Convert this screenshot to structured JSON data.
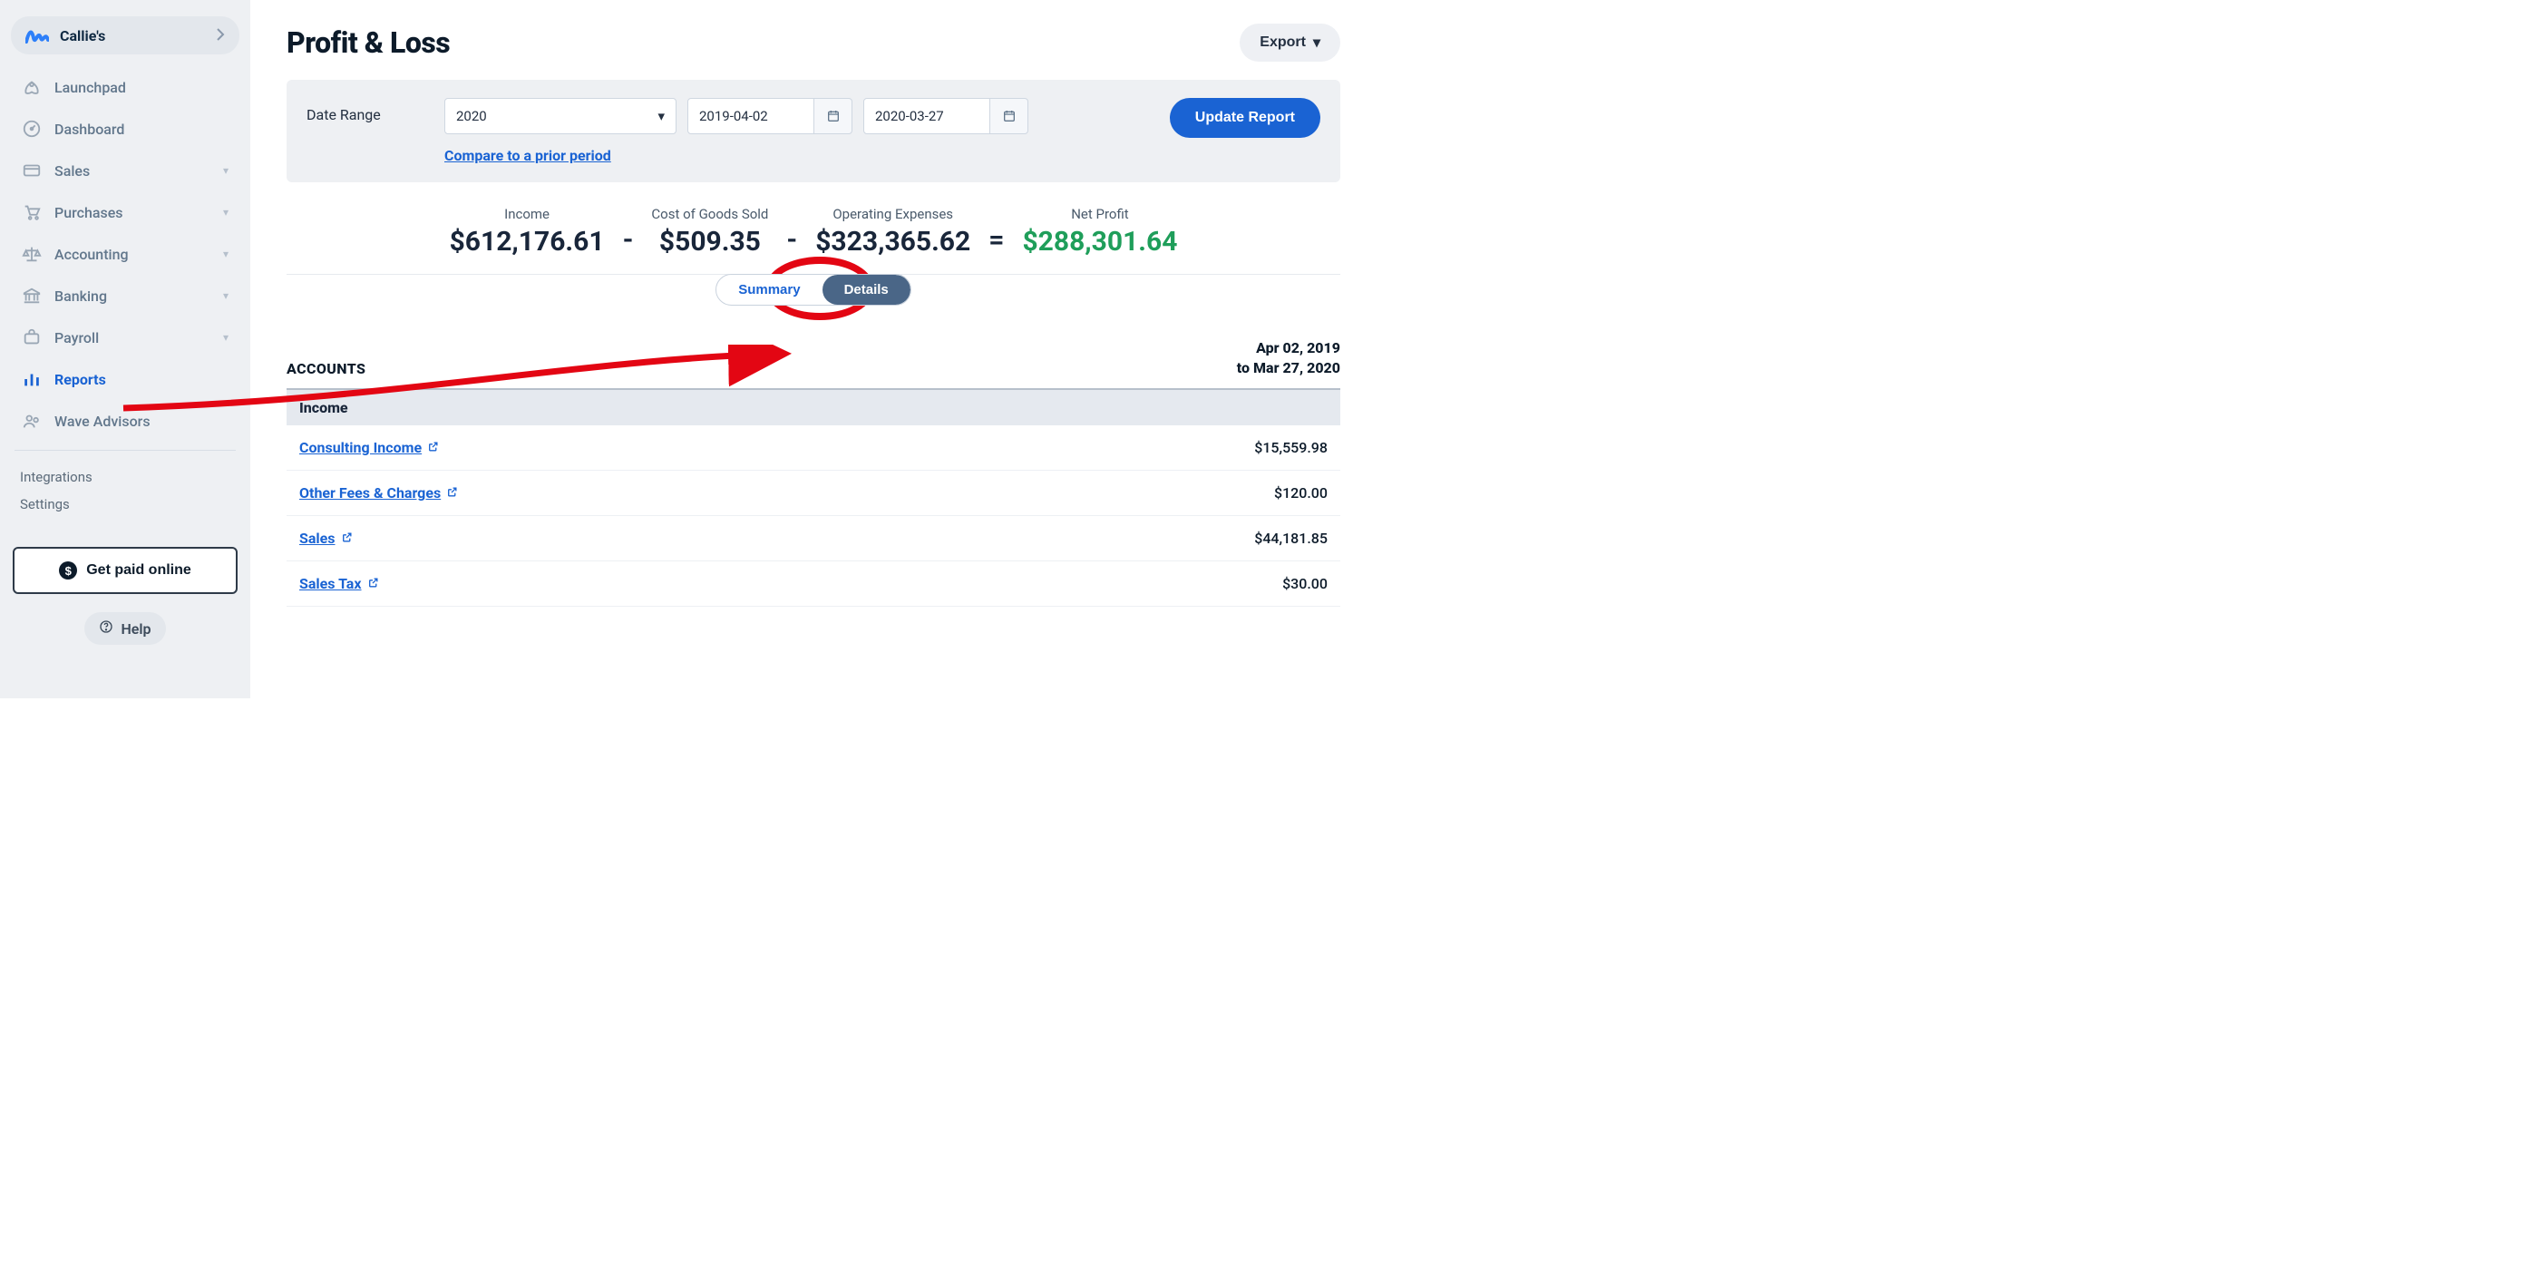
{
  "colors": {
    "sidebar_bg": "#eef0f3",
    "active_blue": "#1a63d3",
    "net_profit_green": "#1f9e5a",
    "toggle_active_bg": "#4a6687",
    "annotation_red": "#e30613"
  },
  "sidebar": {
    "business_name": "Callie's",
    "items": [
      {
        "label": "Launchpad",
        "expandable": false
      },
      {
        "label": "Dashboard",
        "expandable": false
      },
      {
        "label": "Sales",
        "expandable": true
      },
      {
        "label": "Purchases",
        "expandable": true
      },
      {
        "label": "Accounting",
        "expandable": true
      },
      {
        "label": "Banking",
        "expandable": true
      },
      {
        "label": "Payroll",
        "expandable": true
      },
      {
        "label": "Reports",
        "expandable": false,
        "active": true
      },
      {
        "label": "Wave Advisors",
        "expandable": false
      }
    ],
    "secondary": [
      "Integrations",
      "Settings"
    ],
    "cta": "Get paid online",
    "help": "Help"
  },
  "page": {
    "title": "Profit & Loss",
    "export_label": "Export"
  },
  "filters": {
    "label": "Date Range",
    "preset": "2020",
    "start_date": "2019-04-02",
    "end_date": "2020-03-27",
    "compare_link": "Compare to a prior period",
    "update_label": "Update Report"
  },
  "equation": {
    "income_label": "Income",
    "income_value": "$612,176.61",
    "cogs_label": "Cost of Goods Sold",
    "cogs_value": "$509.35",
    "opex_label": "Operating Expenses",
    "opex_value": "$323,365.62",
    "net_label": "Net Profit",
    "net_value": "$288,301.64"
  },
  "toggle": {
    "summary": "Summary",
    "details": "Details"
  },
  "table": {
    "header_accounts": "ACCOUNTS",
    "range_line1": "Apr 02, 2019",
    "range_line2": "to Mar 27, 2020",
    "section": "Income",
    "rows": [
      {
        "name": "Consulting Income",
        "amount": "$15,559.98"
      },
      {
        "name": "Other Fees & Charges",
        "amount": "$120.00"
      },
      {
        "name": "Sales",
        "amount": "$44,181.85"
      },
      {
        "name": "Sales Tax",
        "amount": "$30.00"
      }
    ]
  }
}
